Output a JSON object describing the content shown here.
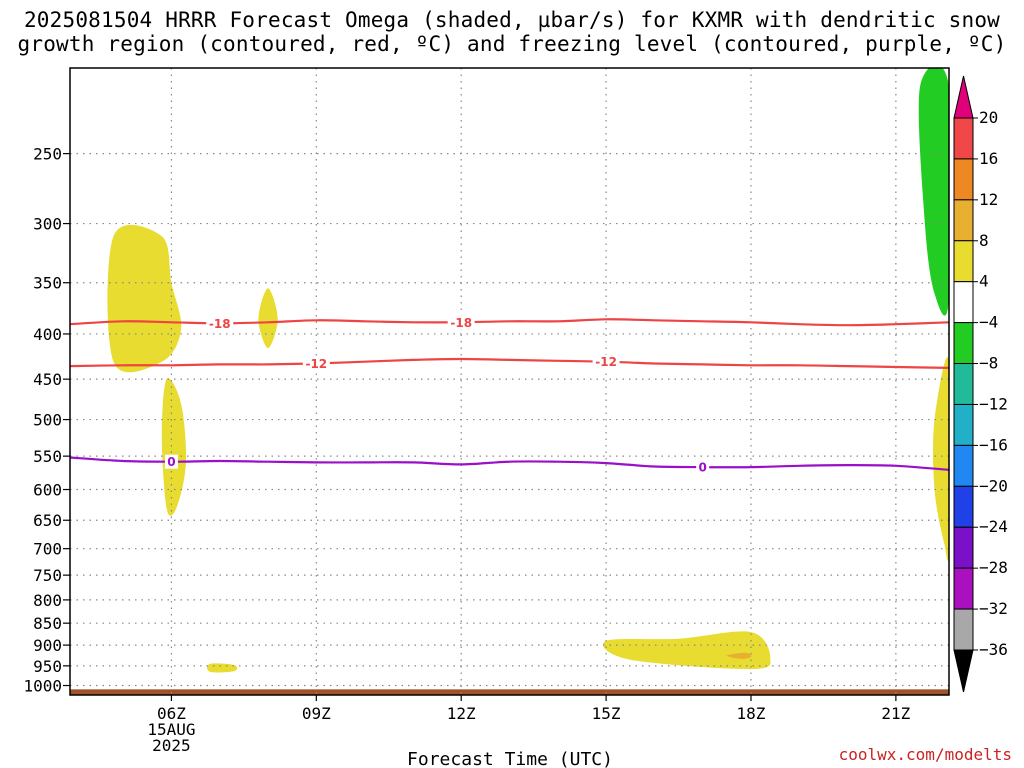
{
  "title": {
    "line1": "2025081504 HRRR Forecast Omega (shaded, µbar/s) for KXMR with dendritic snow",
    "line2": "growth region (contoured, red, ºC) and freezing level (contoured, purple, ºC)"
  },
  "credit": "coolwx.com/modelts",
  "chart_data": {
    "type": "contour",
    "xlabel": "Forecast Time (UTC)",
    "x_ticks": [
      "06Z",
      "09Z",
      "12Z",
      "15Z",
      "18Z",
      "21Z"
    ],
    "x_tick_hours": [
      6,
      9,
      12,
      15,
      18,
      21
    ],
    "x_date_sub": [
      "15AUG",
      "2025"
    ],
    "xlim_hours": [
      3.9,
      22.1
    ],
    "y_ticks": [
      250,
      300,
      350,
      400,
      450,
      500,
      550,
      600,
      650,
      700,
      750,
      800,
      850,
      900,
      950,
      1000
    ],
    "ylim_hPa": [
      200,
      1025
    ],
    "y_scale": "log-pressure",
    "grid": true,
    "colorbar": {
      "labels": [
        "20",
        "16",
        "12",
        "8",
        "4",
        "-4",
        "-8",
        "-12",
        "-16",
        "-20",
        "-24",
        "-28",
        "-32",
        "-36"
      ],
      "colors": [
        "#e0007a",
        "#f04848",
        "#ee8822",
        "#e8b030",
        "#e8dc30",
        "#ffffff",
        "#22cc22",
        "#22bb99",
        "#22b0c8",
        "#2088f0",
        "#2040e8",
        "#7a10c8",
        "#aa10c0",
        "#a8a8a8",
        "#000000"
      ]
    },
    "omega_regions": [
      {
        "label": "4 to 8",
        "color": "#e8dc30",
        "points": [
          [
            5.8,
            310
          ],
          [
            4.8,
            310
          ],
          [
            4.8,
            430
          ],
          [
            5.8,
            430
          ],
          [
            6.2,
            395
          ],
          [
            6.0,
            350
          ]
        ]
      },
      {
        "label": "4 to 8",
        "color": "#e8dc30",
        "points": [
          [
            5.9,
            450
          ],
          [
            5.8,
            520
          ],
          [
            5.9,
            630
          ],
          [
            6.1,
            630
          ],
          [
            6.3,
            560
          ],
          [
            6.2,
            480
          ]
        ]
      },
      {
        "label": "4 to 8",
        "color": "#e8dc30",
        "points": [
          [
            8.0,
            355
          ],
          [
            7.8,
            385
          ],
          [
            8.0,
            415
          ],
          [
            8.2,
            385
          ]
        ]
      },
      {
        "label": "4 to 8",
        "color": "#e8dc30",
        "points": [
          [
            6.8,
            945
          ],
          [
            6.8,
            965
          ],
          [
            7.3,
            963
          ],
          [
            7.3,
            948
          ]
        ]
      },
      {
        "label": "4 to 8",
        "color": "#e8dc30",
        "points": [
          [
            15.0,
            890
          ],
          [
            15.5,
            935
          ],
          [
            18.0,
            958
          ],
          [
            18.4,
            930
          ],
          [
            18.0,
            870
          ],
          [
            16.5,
            885
          ]
        ]
      },
      {
        "label": "8 to 12",
        "color": "#e8b030",
        "points": [
          [
            17.5,
            925
          ],
          [
            17.9,
            918
          ],
          [
            18.0,
            928
          ],
          [
            17.8,
            933
          ]
        ]
      },
      {
        "label": "-4 to -8",
        "color": "#22cc22",
        "points": [
          [
            21.5,
            210
          ],
          [
            21.6,
            300
          ],
          [
            21.8,
            360
          ],
          [
            22.1,
            365
          ],
          [
            22.1,
            210
          ]
        ]
      },
      {
        "label": "4 to 8",
        "color": "#e8dc30",
        "points": [
          [
            22.1,
            430
          ],
          [
            21.8,
            500
          ],
          [
            21.8,
            600
          ],
          [
            22.0,
            690
          ],
          [
            22.1,
            695
          ]
        ]
      }
    ],
    "terrain": {
      "color": "#a0522d",
      "pressure": 1010
    },
    "contours": [
      {
        "name": "-18",
        "color": "#ee4444",
        "x": [
          3.9,
          5,
          6,
          7,
          8,
          9,
          10,
          11,
          12,
          13,
          14,
          15,
          16,
          17,
          18,
          19,
          20,
          21,
          22.1
        ],
        "y": [
          390,
          387,
          388,
          389,
          388,
          386,
          387,
          388,
          388,
          387,
          387,
          385,
          386,
          387,
          388,
          390,
          391,
          390,
          388
        ],
        "labels_at": [
          7.0,
          12.0
        ]
      },
      {
        "name": "-12",
        "color": "#ee4444",
        "x": [
          3.9,
          5,
          6,
          7,
          8,
          9,
          10,
          11,
          12,
          13,
          14,
          15,
          16,
          17,
          18,
          19,
          20,
          21,
          22.1
        ],
        "y": [
          435,
          434,
          434,
          433,
          433,
          432,
          430,
          428,
          427,
          428,
          429,
          430,
          432,
          433,
          434,
          434,
          435,
          436,
          437
        ],
        "labels_at": [
          9.0,
          15.0
        ]
      },
      {
        "name": "0",
        "color": "#9a10c8",
        "x": [
          3.9,
          5,
          6,
          7,
          8,
          9,
          10,
          11,
          12,
          13,
          14,
          15,
          16,
          17,
          18,
          19,
          20,
          21,
          22.1
        ],
        "y": [
          552,
          557,
          558,
          557,
          558,
          559,
          559,
          559,
          562,
          558,
          558,
          560,
          565,
          566,
          566,
          564,
          563,
          564,
          570
        ],
        "labels_at": [
          6.0,
          17.0
        ]
      }
    ]
  }
}
